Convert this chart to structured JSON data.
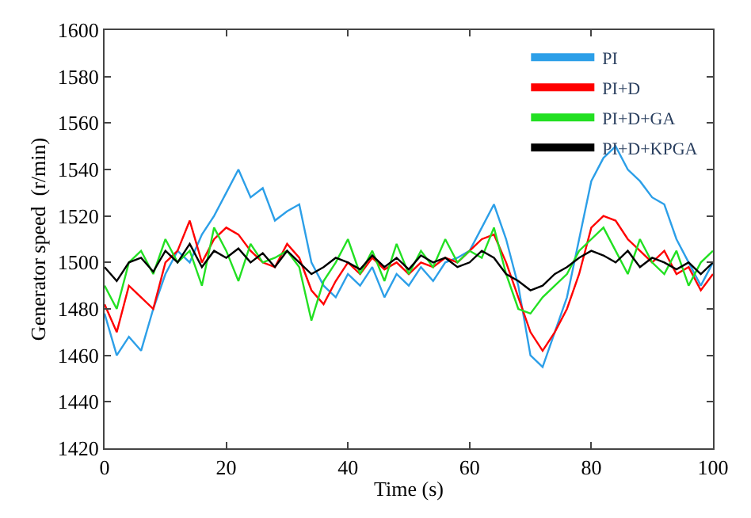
{
  "chart_data": {
    "type": "line",
    "xlabel": "Time (s)",
    "ylabel": "Generator speed  (r/min)",
    "x": [
      0,
      2,
      4,
      6,
      8,
      10,
      12,
      14,
      16,
      18,
      20,
      22,
      24,
      26,
      28,
      30,
      32,
      34,
      36,
      38,
      40,
      42,
      44,
      46,
      48,
      50,
      52,
      54,
      56,
      58,
      60,
      62,
      64,
      66,
      68,
      70,
      72,
      74,
      76,
      78,
      80,
      82,
      84,
      86,
      88,
      90,
      92,
      94,
      96,
      98,
      100
    ],
    "series": [
      {
        "name": "PI",
        "color": "#2c9fe8",
        "values": [
          1478,
          1460,
          1468,
          1462,
          1480,
          1495,
          1505,
          1500,
          1512,
          1520,
          1530,
          1540,
          1528,
          1532,
          1518,
          1522,
          1525,
          1500,
          1490,
          1485,
          1495,
          1490,
          1498,
          1485,
          1495,
          1490,
          1498,
          1492,
          1500,
          1502,
          1505,
          1515,
          1525,
          1510,
          1490,
          1460,
          1455,
          1470,
          1485,
          1510,
          1535,
          1545,
          1550,
          1540,
          1535,
          1528,
          1525,
          1510,
          1500,
          1490,
          1500
        ]
      },
      {
        "name": "PI+D",
        "color": "#ff0000",
        "values": [
          1482,
          1470,
          1490,
          1485,
          1480,
          1500,
          1505,
          1518,
          1500,
          1510,
          1515,
          1512,
          1505,
          1500,
          1498,
          1508,
          1502,
          1488,
          1482,
          1492,
          1500,
          1495,
          1502,
          1497,
          1500,
          1495,
          1500,
          1498,
          1502,
          1500,
          1505,
          1510,
          1512,
          1500,
          1485,
          1470,
          1462,
          1470,
          1480,
          1495,
          1515,
          1520,
          1518,
          1510,
          1505,
          1500,
          1505,
          1495,
          1498,
          1488,
          1495
        ]
      },
      {
        "name": "PI+D+GA",
        "color": "#22e022",
        "values": [
          1490,
          1480,
          1500,
          1505,
          1495,
          1510,
          1500,
          1505,
          1490,
          1515,
          1505,
          1492,
          1508,
          1500,
          1502,
          1505,
          1498,
          1475,
          1492,
          1500,
          1510,
          1495,
          1505,
          1492,
          1508,
          1495,
          1505,
          1498,
          1510,
          1500,
          1505,
          1502,
          1515,
          1495,
          1480,
          1478,
          1485,
          1490,
          1495,
          1505,
          1510,
          1515,
          1505,
          1495,
          1510,
          1500,
          1495,
          1505,
          1490,
          1500,
          1505
        ]
      },
      {
        "name": "PI+D+KPGA",
        "color": "#000000",
        "values": [
          1498,
          1492,
          1500,
          1502,
          1496,
          1505,
          1500,
          1508,
          1498,
          1505,
          1502,
          1506,
          1500,
          1504,
          1498,
          1505,
          1500,
          1495,
          1498,
          1502,
          1500,
          1497,
          1503,
          1498,
          1502,
          1497,
          1503,
          1500,
          1502,
          1498,
          1500,
          1505,
          1502,
          1495,
          1492,
          1488,
          1490,
          1495,
          1498,
          1502,
          1505,
          1503,
          1500,
          1505,
          1498,
          1502,
          1500,
          1497,
          1500,
          1495,
          1500
        ]
      }
    ],
    "xlim": [
      0,
      100
    ],
    "xticks": [
      0,
      20,
      40,
      60,
      80,
      100
    ],
    "ylim": [
      1420,
      1600
    ],
    "yticks": [
      1420,
      1440,
      1460,
      1480,
      1500,
      1520,
      1540,
      1560,
      1580,
      1600
    ],
    "legend": "top right",
    "marker": "none",
    "line_style": "solid"
  }
}
